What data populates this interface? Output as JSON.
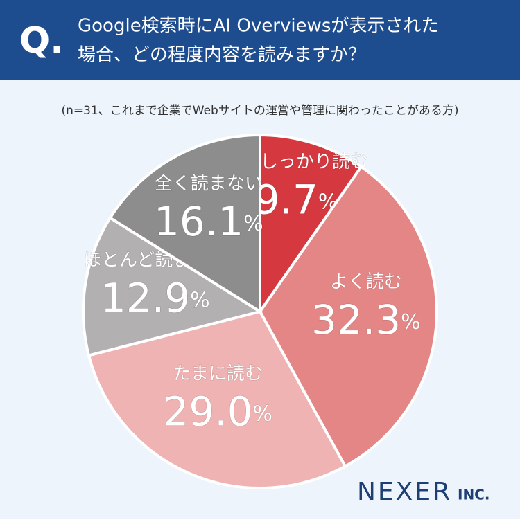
{
  "chart_data": {
    "type": "pie",
    "badge": "Q.",
    "title": [
      "Google検索時にAI Overviewsが表示された",
      "場合、どの程度内容を読みますか？"
    ],
    "subtitle": "(n=31、これまで企業でWebサイトの運営や管理に関わったことがある方)",
    "categories": [
      "毎回しっかり読む",
      "よく読む",
      "たまに読む",
      "ほとんど読まない",
      "全く読まない"
    ],
    "values": [
      9.7,
      32.3,
      29.0,
      12.9,
      16.1
    ],
    "value_labels": [
      "9.7%",
      "32.3%",
      "29.0%",
      "12.9%",
      "16.1%"
    ],
    "colors": [
      "#d5393f",
      "#e48686",
      "#efb3b3",
      "#b2b0b0",
      "#8e8d8d"
    ],
    "brand": "NEXER",
    "brand_suffix": "INC."
  }
}
